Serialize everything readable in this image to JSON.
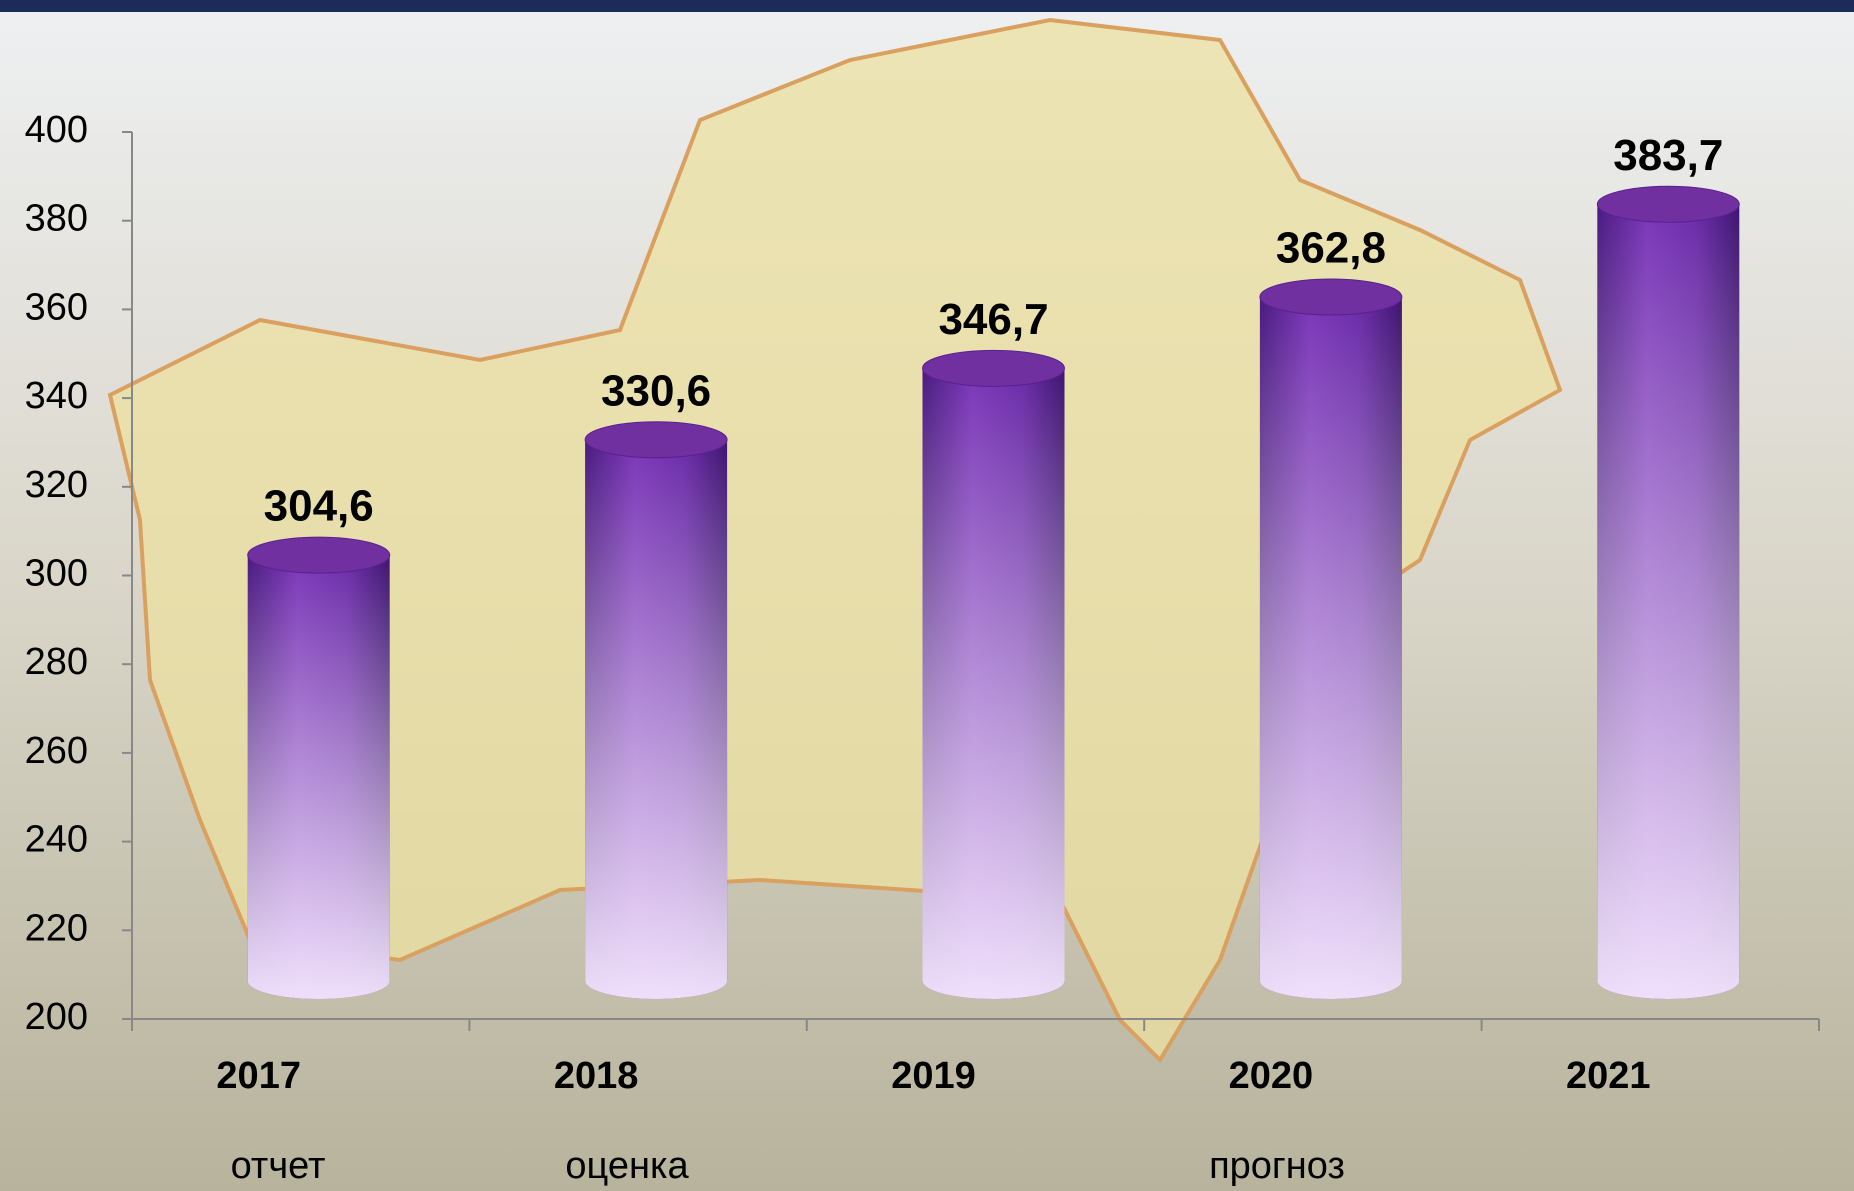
{
  "chart_data": {
    "type": "bar",
    "categories": [
      "2017",
      "2018",
      "2019",
      "2020",
      "2021"
    ],
    "values": [
      304.6,
      330.6,
      346.7,
      362.8,
      383.7
    ],
    "value_labels": [
      "304,6",
      "330,6",
      "346,7",
      "362,8",
      "383,7"
    ],
    "color": "#7030a0",
    "ylim": [
      200,
      400
    ],
    "yticks": [
      200,
      220,
      240,
      260,
      280,
      300,
      320,
      340,
      360,
      380,
      400
    ],
    "annotations": [
      "отчет",
      "оценка",
      "прогноз"
    ]
  }
}
